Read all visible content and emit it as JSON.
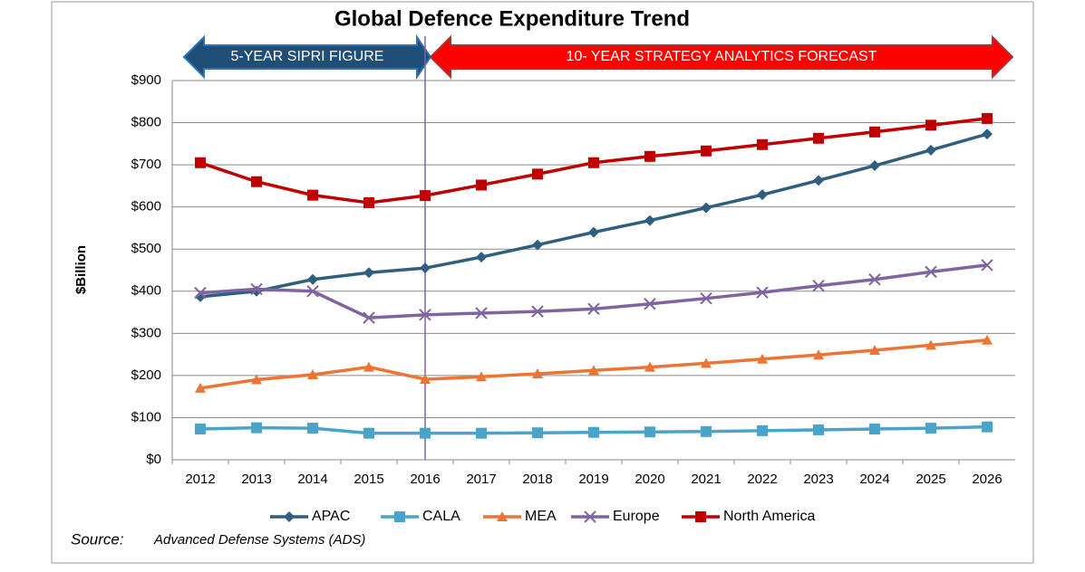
{
  "chart_data": {
    "type": "line",
    "title": "Global Defence Expenditure Trend",
    "y_label": "$Billion",
    "annotations": [
      "5-YEAR SIPRI FIGURE",
      "10- YEAR STRATEGY ANALYTICS FORECAST"
    ],
    "source_label": "Source:",
    "source": "Advanced Defense Systems (ADS)",
    "categories": [
      "2012",
      "2013",
      "2014",
      "2015",
      "2016",
      "2017",
      "2018",
      "2019",
      "2020",
      "2021",
      "2022",
      "2023",
      "2024",
      "2025",
      "2026"
    ],
    "ylim": [
      0,
      900
    ],
    "yticks": [
      {
        "value": 0,
        "label": "$0"
      },
      {
        "value": 100,
        "label": "$100"
      },
      {
        "value": 200,
        "label": "$200"
      },
      {
        "value": 300,
        "label": "$300"
      },
      {
        "value": 400,
        "label": "$400"
      },
      {
        "value": 500,
        "label": "$500"
      },
      {
        "value": 600,
        "label": "$600"
      },
      {
        "value": 700,
        "label": "$700"
      },
      {
        "value": 800,
        "label": "$800"
      },
      {
        "value": 900,
        "label": "$900"
      }
    ],
    "grid": true,
    "series": [
      {
        "name": "APAC",
        "color": "#2e5f7f",
        "marker": "diamond",
        "values": [
          387,
          400,
          428,
          444,
          455,
          481,
          510,
          540,
          568,
          598,
          629,
          663,
          698,
          735,
          773
        ]
      },
      {
        "name": "CALA",
        "color": "#4aa3c8",
        "marker": "square",
        "values": [
          73,
          76,
          75,
          63,
          63,
          63,
          64,
          65,
          66,
          67,
          69,
          71,
          73,
          75,
          78
        ]
      },
      {
        "name": "MEA",
        "color": "#ee7433",
        "marker": "triangle",
        "values": [
          170,
          190,
          202,
          220,
          191,
          197,
          204,
          212,
          220,
          229,
          239,
          249,
          260,
          272,
          284
        ]
      },
      {
        "name": "Europe",
        "color": "#8064a2",
        "marker": "x",
        "values": [
          396,
          405,
          400,
          337,
          344,
          348,
          352,
          358,
          370,
          383,
          397,
          413,
          428,
          446,
          462
        ]
      },
      {
        "name": "North America",
        "color": "#c00000",
        "marker": "square",
        "values": [
          705,
          660,
          628,
          610,
          627,
          652,
          678,
          705,
          720,
          733,
          748,
          763,
          778,
          794,
          810
        ]
      }
    ]
  }
}
